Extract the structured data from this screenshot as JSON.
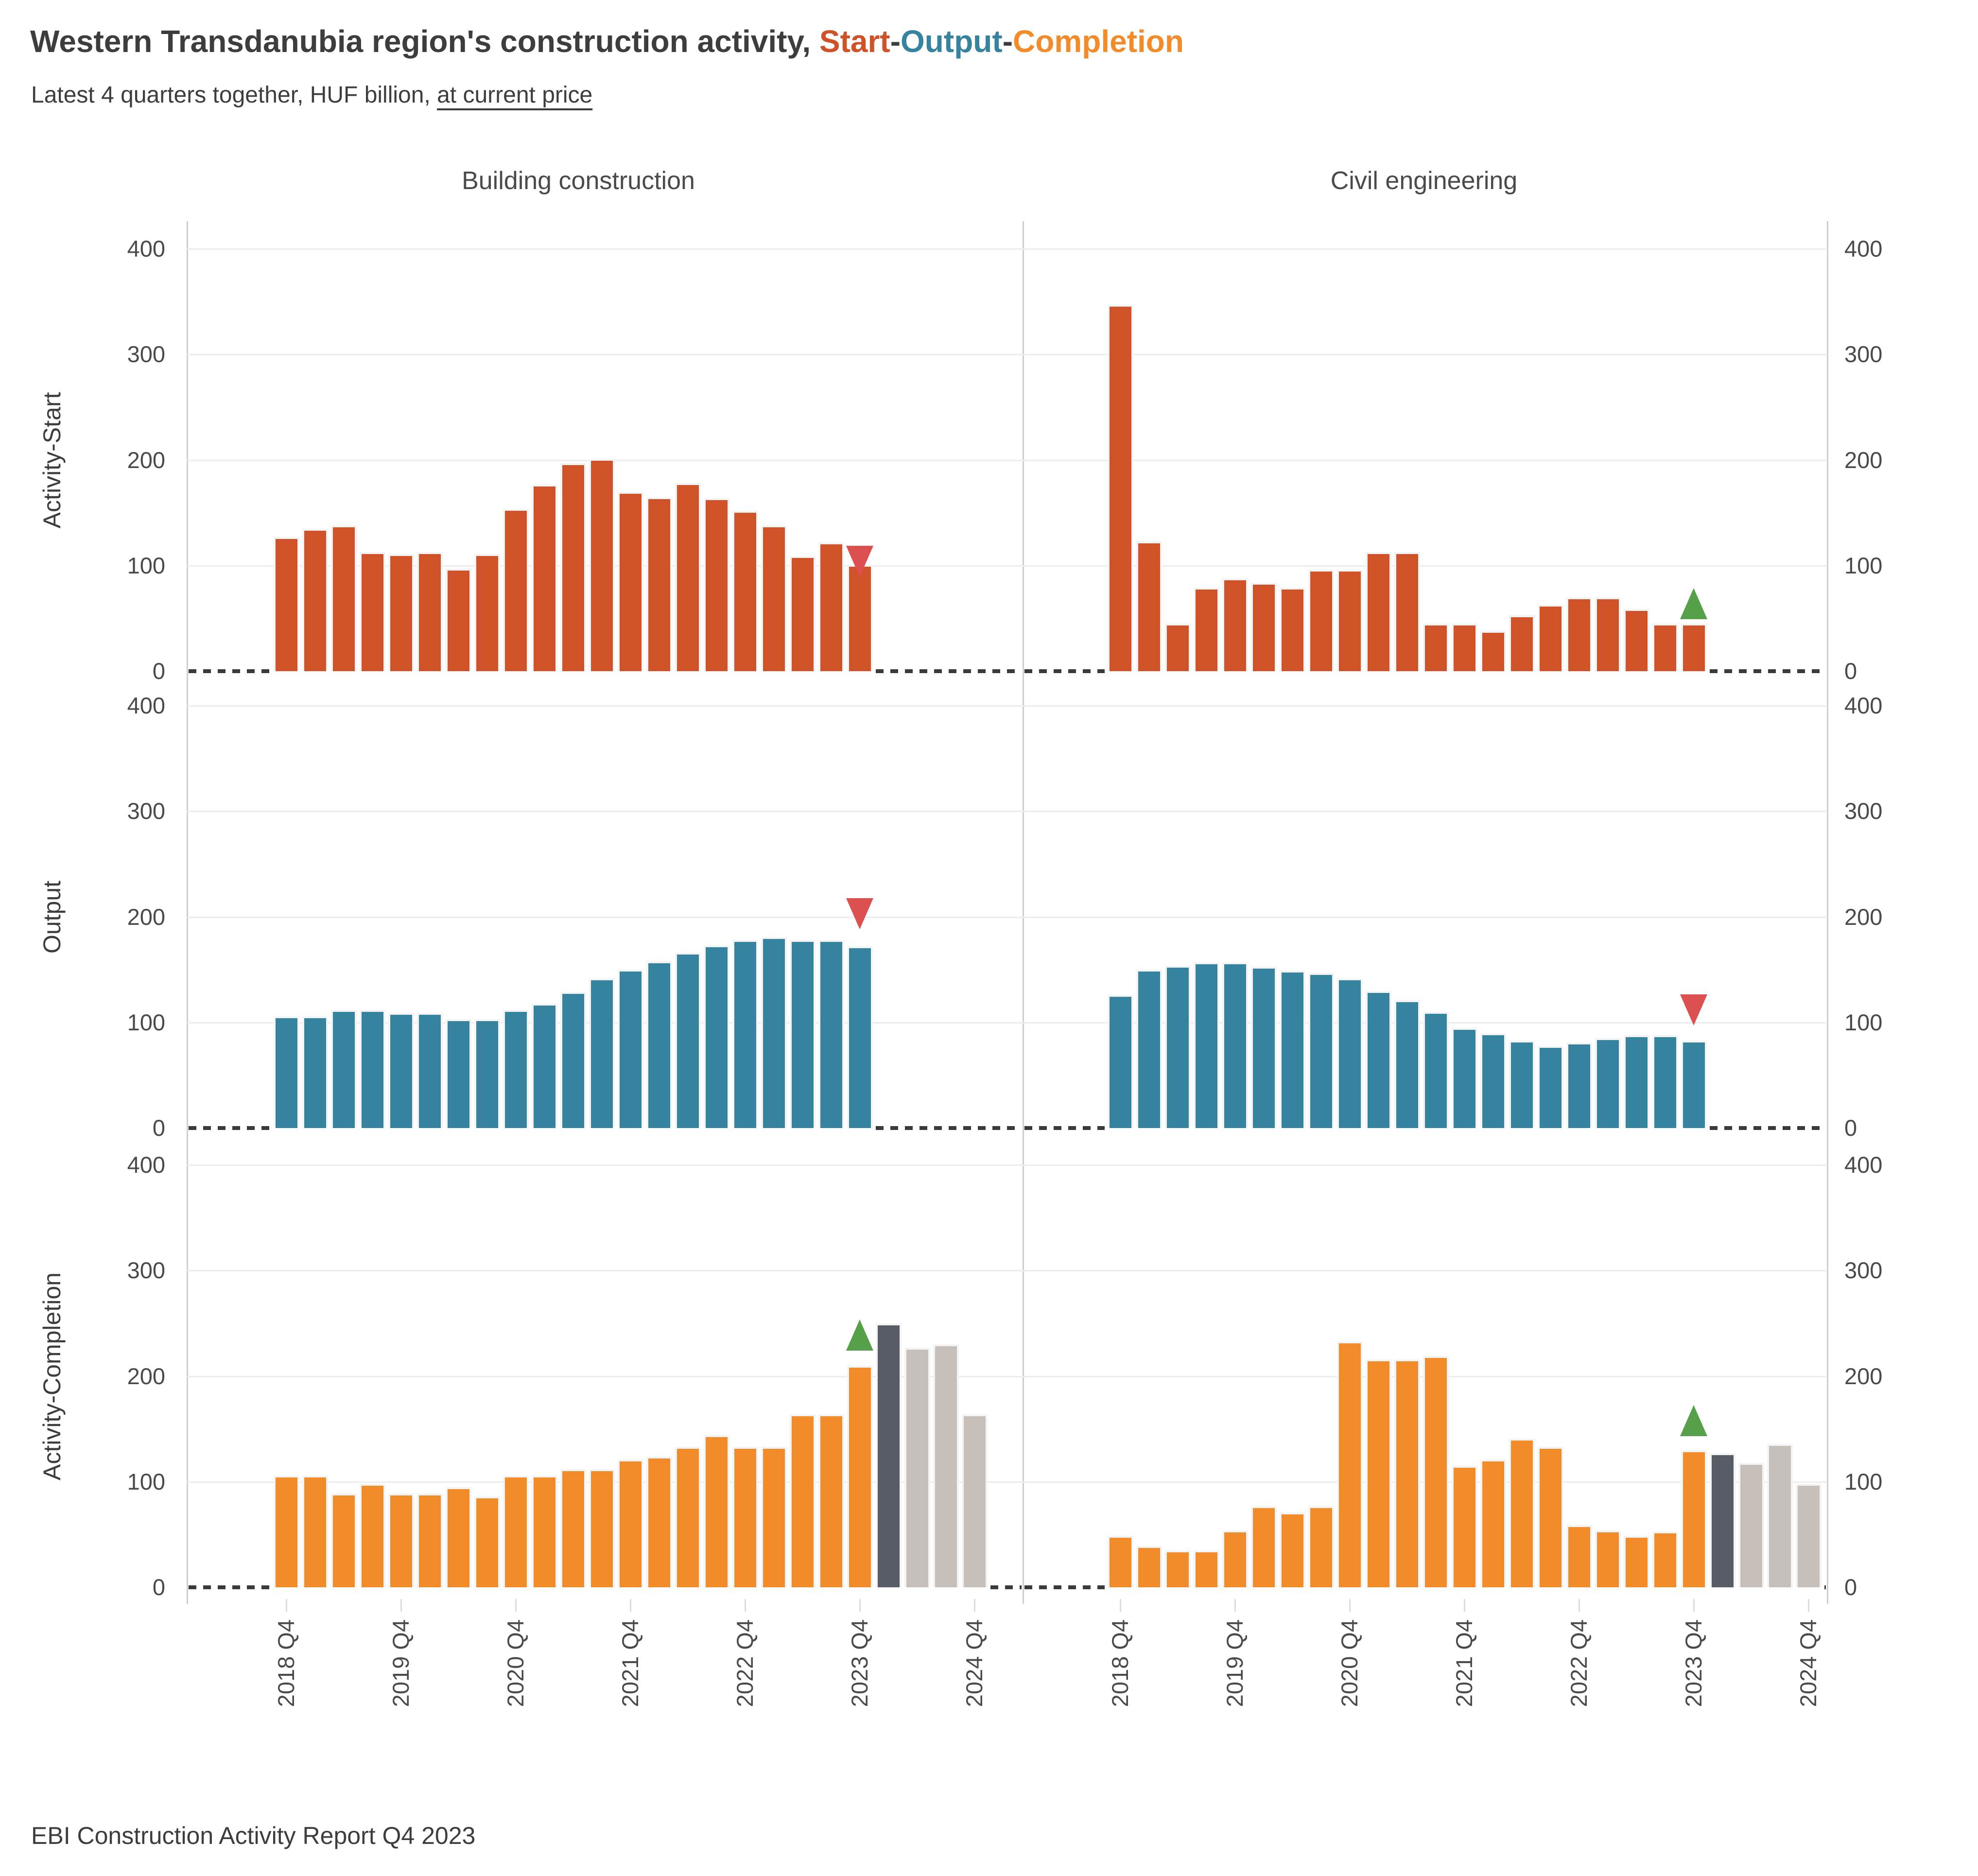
{
  "title": {
    "prefix": "Western Transdanubia region's construction activity, ",
    "start": "Start",
    "sep1": "-",
    "output": "Output",
    "sep2": "-",
    "completion": "Completion"
  },
  "subtitle": {
    "prefix": "Latest 4 quarters together, HUF billion, ",
    "underlined": "at current price"
  },
  "footer": "EBI Construction Activity Report Q4 2023",
  "columns": [
    "Building construction",
    "Civil engineering"
  ],
  "rows": [
    "Activity-Start",
    "Output",
    "Activity-Completion"
  ],
  "colors": {
    "title_text": "#3d3d3d",
    "start": "#cf5228",
    "output": "#36839f",
    "completion": "#f28c2b",
    "forecast_dark": "#575c66",
    "forecast_light": "#c7bfba",
    "marker_up": "#55a049",
    "marker_down": "#dd5050",
    "gridline": "#ededed",
    "axis_line": "#cdcdcd",
    "zero_dash": "#3a3a3a"
  },
  "chart_data": {
    "type": "bar",
    "title": "Western Transdanubia region's construction activity, Start-Output-Completion",
    "subtitle": "Latest 4 quarters together, HUF billion, at current price",
    "unit": "HUF billion",
    "ylim": [
      0,
      440
    ],
    "y_ticks": [
      400,
      300,
      200,
      100,
      0
    ],
    "x_tick_labels": [
      "2018 Q4",
      "2019 Q4",
      "2020 Q4",
      "2021 Q4",
      "2022 Q4",
      "2023 Q4",
      "2024 Q4"
    ],
    "quarters_per_tick": 4,
    "grid": "horizontal",
    "panels": [
      {
        "row": "Activity-Start",
        "col": "Building construction",
        "segments": [
          {
            "color": "start",
            "values": [
              127,
              135,
              138,
              113,
              111,
              113,
              97,
              111,
              154,
              177,
              197,
              201,
              170,
              165,
              178,
              164,
              152,
              138,
              109,
              122,
              101
            ]
          }
        ],
        "marker": {
          "shape": "down",
          "color": "marker_down",
          "bar_index": 20,
          "value": 104
        }
      },
      {
        "row": "Activity-Start",
        "col": "Civil engineering",
        "segments": [
          {
            "color": "start",
            "values": [
              347,
              123,
              45,
              79,
              88,
              84,
              79,
              96,
              96,
              113,
              113,
              45,
              45,
              38,
              53,
              63,
              70,
              70,
              59,
              45,
              45
            ]
          }
        ],
        "marker": {
          "shape": "up",
          "color": "marker_up",
          "bar_index": 20,
          "value": 64
        }
      },
      {
        "row": "Output",
        "col": "Building construction",
        "segments": [
          {
            "color": "output",
            "values": [
              106,
              106,
              112,
              112,
              109,
              109,
              103,
              103,
              112,
              118,
              129,
              142,
              150,
              158,
              166,
              173,
              178,
              181,
              178,
              178,
              172
            ]
          }
        ],
        "marker": {
          "shape": "down",
          "color": "marker_down",
          "bar_index": 20,
          "value": 203
        }
      },
      {
        "row": "Output",
        "col": "Civil engineering",
        "segments": [
          {
            "color": "output",
            "values": [
              126,
              150,
              154,
              157,
              157,
              153,
              149,
              147,
              142,
              130,
              121,
              110,
              95,
              90,
              83,
              78,
              81,
              85,
              88,
              88,
              83
            ]
          }
        ],
        "marker": {
          "shape": "down",
          "color": "marker_down",
          "bar_index": 20,
          "value": 112
        }
      },
      {
        "row": "Activity-Completion",
        "col": "Building construction",
        "segments": [
          {
            "color": "completion",
            "values": [
              106,
              106,
              89,
              98,
              89,
              89,
              95,
              86,
              106,
              106,
              112,
              112,
              121,
              124,
              133,
              144,
              133,
              133,
              164,
              164,
              210
            ]
          },
          {
            "color": "forecast_dark",
            "values": [
              250
            ]
          },
          {
            "color": "forecast_light",
            "values": [
              227,
              230,
              164
            ]
          }
        ],
        "marker": {
          "shape": "up",
          "color": "marker_up",
          "bar_index": 20,
          "value": 239
        }
      },
      {
        "row": "Activity-Completion",
        "col": "Civil engineering",
        "segments": [
          {
            "color": "completion",
            "values": [
              49,
              39,
              35,
              35,
              54,
              77,
              71,
              77,
              233,
              216,
              216,
              219,
              115,
              121,
              141,
              133,
              59,
              54,
              49,
              53,
              130
            ]
          },
          {
            "color": "forecast_dark",
            "values": [
              127
            ]
          },
          {
            "color": "forecast_light",
            "values": [
              118,
              136,
              98
            ]
          }
        ],
        "marker": {
          "shape": "up",
          "color": "marker_up",
          "bar_index": 20,
          "value": 158
        }
      }
    ]
  }
}
